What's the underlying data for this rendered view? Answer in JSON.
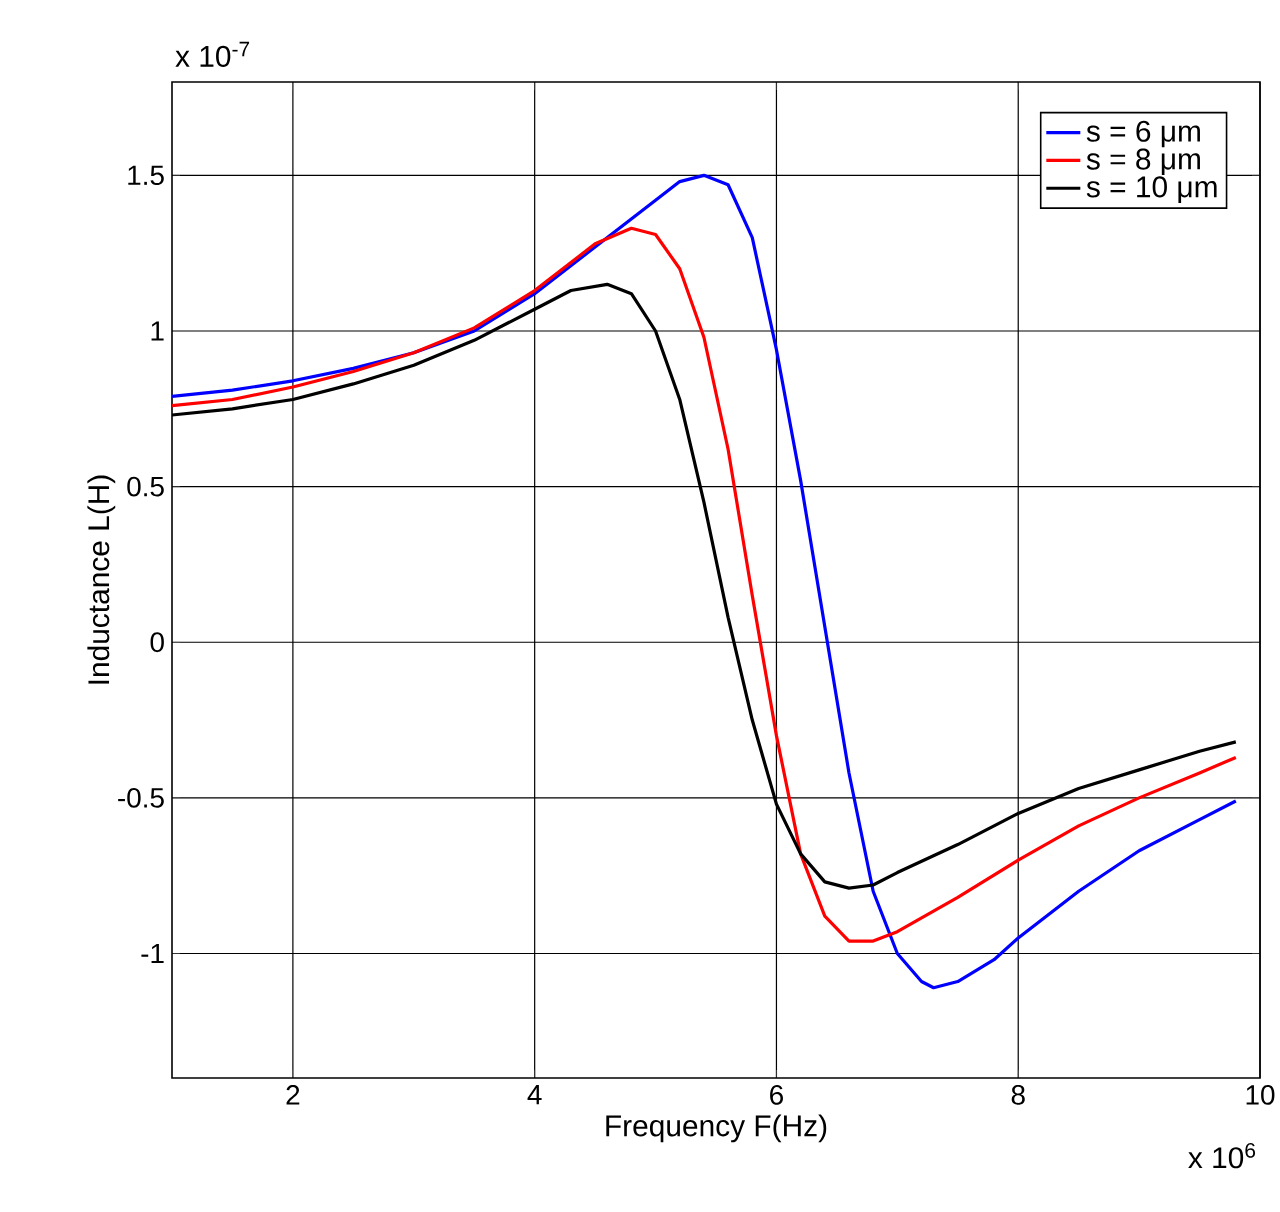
{
  "chart_data": {
    "type": "line",
    "xlabel": "Frequency    F(Hz)",
    "ylabel": "Inductance    L(H)",
    "annotations": [
      "x 10$^{6}$",
      "x 10$^{-7}$"
    ],
    "xlim": [
      1,
      10
    ],
    "ylim": [
      -1.4,
      1.8
    ],
    "xticks": [
      2,
      4,
      6,
      8,
      10
    ],
    "yticks": [
      -1,
      -0.5,
      0,
      0.5,
      1,
      1.5
    ],
    "grid": true,
    "legend": "top right",
    "marker": "none",
    "line_style": "solid",
    "series": [
      {
        "name": "s  = 6 μm",
        "color": "#0000ff",
        "x": [
          1,
          1.5,
          2,
          2.5,
          3,
          3.5,
          4,
          4.5,
          5,
          5.2,
          5.4,
          5.6,
          5.8,
          6.0,
          6.2,
          6.4,
          6.6,
          6.8,
          7.0,
          7.2,
          7.3,
          7.5,
          7.8,
          8.0,
          8.5,
          9.0,
          9.5,
          9.8
        ],
        "values": [
          0.79,
          0.81,
          0.84,
          0.88,
          0.93,
          1.0,
          1.12,
          1.27,
          1.42,
          1.48,
          1.5,
          1.47,
          1.3,
          0.94,
          0.52,
          0.05,
          -0.42,
          -0.8,
          -1.0,
          -1.09,
          -1.11,
          -1.09,
          -1.02,
          -0.95,
          -0.8,
          -0.67,
          -0.57,
          -0.51
        ]
      },
      {
        "name": "s  = 8 μm",
        "color": "#ff0000",
        "x": [
          1,
          1.5,
          2,
          2.5,
          3,
          3.5,
          4,
          4.5,
          4.8,
          5.0,
          5.2,
          5.4,
          5.6,
          5.8,
          6.0,
          6.2,
          6.4,
          6.6,
          6.8,
          7.0,
          7.5,
          8.0,
          8.5,
          9.0,
          9.5,
          9.8
        ],
        "values": [
          0.76,
          0.78,
          0.82,
          0.87,
          0.93,
          1.01,
          1.13,
          1.28,
          1.33,
          1.31,
          1.2,
          0.98,
          0.62,
          0.15,
          -0.3,
          -0.68,
          -0.88,
          -0.96,
          -0.96,
          -0.93,
          -0.82,
          -0.7,
          -0.59,
          -0.5,
          -0.42,
          -0.37
        ]
      },
      {
        "name": "s  = 10 μm",
        "color": "#000000",
        "x": [
          1,
          1.5,
          2,
          2.5,
          3,
          3.5,
          4,
          4.3,
          4.6,
          4.8,
          5.0,
          5.2,
          5.4,
          5.6,
          5.8,
          6.0,
          6.2,
          6.4,
          6.6,
          6.8,
          7.0,
          7.5,
          8.0,
          8.5,
          9.0,
          9.5,
          9.8
        ],
        "values": [
          0.73,
          0.75,
          0.78,
          0.83,
          0.89,
          0.97,
          1.07,
          1.13,
          1.15,
          1.12,
          1.0,
          0.78,
          0.45,
          0.08,
          -0.25,
          -0.52,
          -0.68,
          -0.77,
          -0.79,
          -0.78,
          -0.74,
          -0.65,
          -0.55,
          -0.47,
          -0.41,
          -0.35,
          -0.32
        ]
      }
    ]
  }
}
